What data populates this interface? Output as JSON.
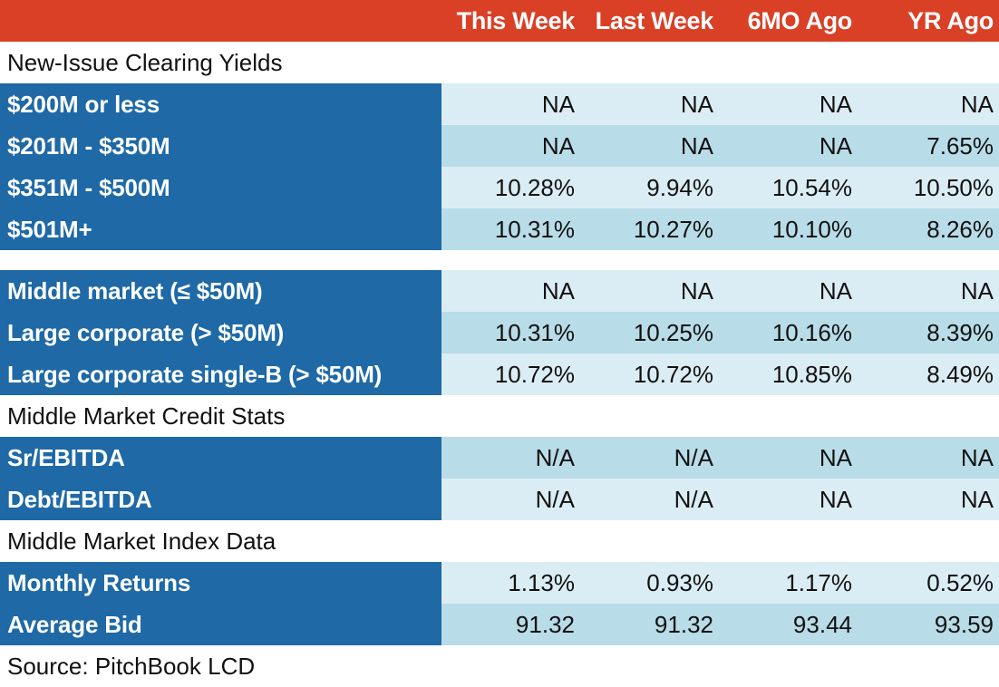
{
  "columns": [
    "This Week",
    "Last Week",
    "6MO Ago",
    "YR Ago"
  ],
  "sections": [
    {
      "title": "New-Issue Clearing Yields",
      "rows": [
        {
          "label": "$200M or less",
          "values": [
            "NA",
            "NA",
            "NA",
            "NA"
          ]
        },
        {
          "label": "$201M - $350M",
          "values": [
            "NA",
            "NA",
            "NA",
            "7.65%"
          ]
        },
        {
          "label": "$351M - $500M",
          "values": [
            "10.28%",
            "9.94%",
            "10.54%",
            "10.50%"
          ]
        },
        {
          "label": "$501M+",
          "values": [
            "10.31%",
            "10.27%",
            "10.10%",
            "8.26%"
          ]
        }
      ]
    },
    {
      "title": "",
      "rows": [
        {
          "label": "Middle market (≤ $50M)",
          "values": [
            "NA",
            "NA",
            "NA",
            "NA"
          ]
        },
        {
          "label": "Large corporate (> $50M)",
          "values": [
            "10.31%",
            "10.25%",
            "10.16%",
            "8.39%"
          ]
        },
        {
          "label": "Large corporate single-B (> $50M)",
          "values": [
            "10.72%",
            "10.72%",
            "10.85%",
            "8.49%"
          ]
        }
      ]
    },
    {
      "title": "Middle Market Credit Stats",
      "rows": [
        {
          "label": "Sr/EBITDA",
          "values": [
            "N/A",
            "N/A",
            "NA",
            "NA"
          ]
        },
        {
          "label": "Debt/EBITDA",
          "values": [
            "N/A",
            "N/A",
            "NA",
            "NA"
          ]
        }
      ]
    },
    {
      "title": "Middle Market Index Data",
      "rows": [
        {
          "label": "Monthly Returns",
          "values": [
            "1.13%",
            "0.93%",
            "1.17%",
            "0.52%"
          ]
        },
        {
          "label": "Average Bid",
          "values": [
            "91.32",
            "91.32",
            "93.44",
            "93.59"
          ]
        }
      ]
    }
  ],
  "source": "Source: PitchBook LCD",
  "colors": {
    "header": "#d94026",
    "label_bg": "#1e69a6",
    "cell_light": "#dbedf4",
    "cell_dark": "#b8dce8"
  }
}
